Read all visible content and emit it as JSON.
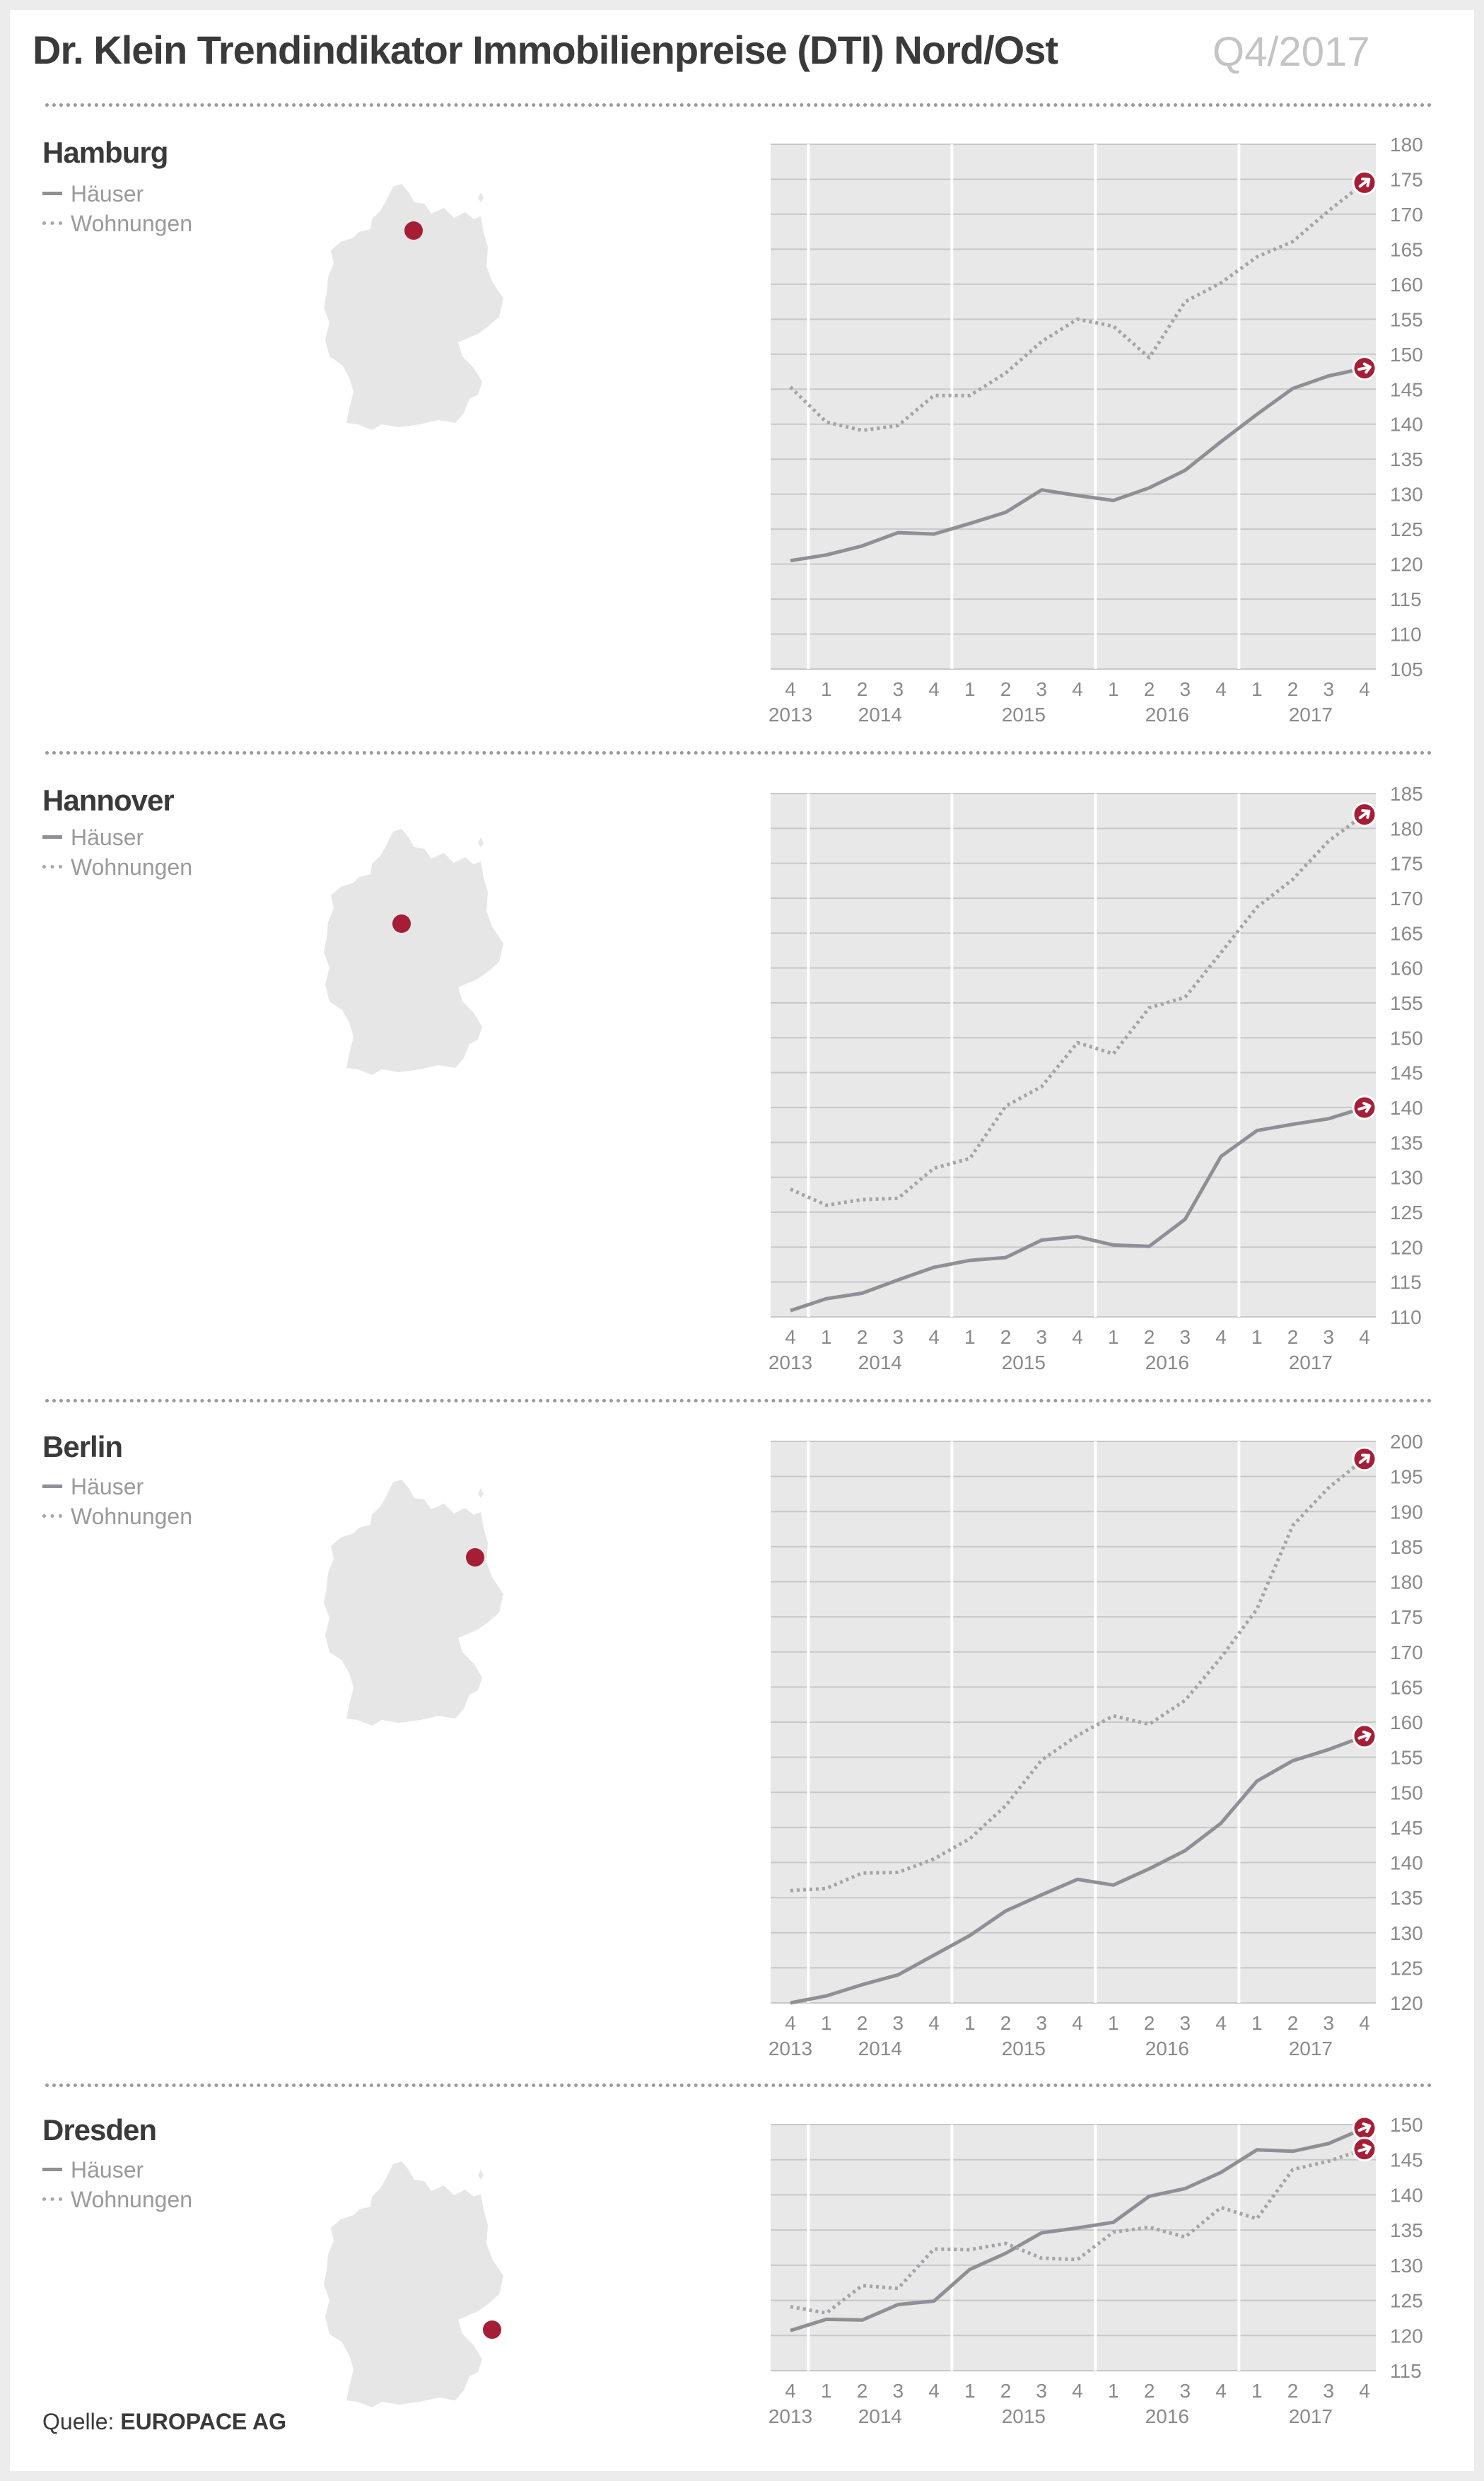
{
  "header": {
    "title": "Dr. Klein Trendindikator Immobilienpreise (DTI) Nord/Ost",
    "period": "Q4/2017"
  },
  "legend": {
    "houses": "Häuser",
    "apartments": "Wohnungen"
  },
  "source": {
    "label": "Quelle:",
    "name": "EUROPACE AG"
  },
  "colors": {
    "houses": "#8f9096",
    "apartments": "#a4a5ab",
    "accent": "#a51e36",
    "plot_bg": "#e8e8e8",
    "map": "#e6e6e6"
  },
  "chart_data": [
    {
      "type": "line",
      "title": "Hamburg",
      "x": [
        "4",
        "1",
        "2",
        "3",
        "4",
        "1",
        "2",
        "3",
        "4",
        "1",
        "2",
        "3",
        "4",
        "1",
        "2",
        "3",
        "4"
      ],
      "x_years": [
        "2013",
        "2014",
        "2014",
        "2014",
        "2014",
        "2015",
        "2015",
        "2015",
        "2015",
        "2016",
        "2016",
        "2016",
        "2016",
        "2017",
        "2017",
        "2017",
        "2017"
      ],
      "year_labels": [
        {
          "label": "2013",
          "at": 0
        },
        {
          "label": "2014",
          "at": 2.5
        },
        {
          "label": "2015",
          "at": 6.5
        },
        {
          "label": "2016",
          "at": 10.5
        },
        {
          "label": "2017",
          "at": 14.5
        }
      ],
      "ylim": [
        105,
        180
      ],
      "yticks": [
        105,
        110,
        115,
        120,
        125,
        130,
        135,
        140,
        145,
        150,
        155,
        160,
        165,
        170,
        175,
        180
      ],
      "grid": true,
      "legend_position": "left",
      "series": [
        {
          "name": "Häuser",
          "style": "solid",
          "values": [
            120.5,
            121.3,
            122.6,
            124.5,
            124.3,
            125.8,
            127.4,
            130.6,
            129.8,
            129.1,
            130.9,
            133.4,
            137.5,
            141.4,
            145.1,
            146.9,
            148.0
          ]
        },
        {
          "name": "Wohnungen",
          "style": "dotted",
          "values": [
            145.3,
            140.3,
            139.1,
            139.8,
            144.1,
            144.1,
            147.3,
            151.8,
            155.0,
            154.0,
            149.5,
            157.5,
            160.2,
            163.9,
            166.1,
            170.5,
            174.5
          ]
        }
      ],
      "marker": {
        "location": "Hamburg"
      }
    },
    {
      "type": "line",
      "title": "Hannover",
      "x": [
        "4",
        "1",
        "2",
        "3",
        "4",
        "1",
        "2",
        "3",
        "4",
        "1",
        "2",
        "3",
        "4",
        "1",
        "2",
        "3",
        "4"
      ],
      "x_years": [
        "2013",
        "2014",
        "2014",
        "2014",
        "2014",
        "2015",
        "2015",
        "2015",
        "2015",
        "2016",
        "2016",
        "2016",
        "2016",
        "2017",
        "2017",
        "2017",
        "2017"
      ],
      "year_labels": [
        {
          "label": "2013",
          "at": 0
        },
        {
          "label": "2014",
          "at": 2.5
        },
        {
          "label": "2015",
          "at": 6.5
        },
        {
          "label": "2016",
          "at": 10.5
        },
        {
          "label": "2017",
          "at": 14.5
        }
      ],
      "ylim": [
        110,
        185
      ],
      "yticks": [
        110,
        115,
        120,
        125,
        130,
        135,
        140,
        145,
        150,
        155,
        160,
        165,
        170,
        175,
        180,
        185
      ],
      "grid": true,
      "legend_position": "left",
      "series": [
        {
          "name": "Häuser",
          "style": "solid",
          "values": [
            110.9,
            112.6,
            113.4,
            115.3,
            117.1,
            118.1,
            118.5,
            121.0,
            121.5,
            120.3,
            120.1,
            124.0,
            133.0,
            136.7,
            137.6,
            138.4,
            140.0
          ]
        },
        {
          "name": "Wohnungen",
          "style": "dotted",
          "values": [
            128.3,
            126.0,
            126.8,
            127.0,
            131.3,
            132.7,
            140.2,
            143.0,
            149.3,
            147.7,
            154.3,
            155.8,
            162.2,
            168.7,
            172.7,
            178.2,
            182.0
          ]
        }
      ],
      "marker": {
        "location": "Hannover"
      }
    },
    {
      "type": "line",
      "title": "Berlin",
      "x": [
        "4",
        "1",
        "2",
        "3",
        "4",
        "1",
        "2",
        "3",
        "4",
        "1",
        "2",
        "3",
        "4",
        "1",
        "2",
        "3",
        "4"
      ],
      "x_years": [
        "2013",
        "2014",
        "2014",
        "2014",
        "2014",
        "2015",
        "2015",
        "2015",
        "2015",
        "2016",
        "2016",
        "2016",
        "2016",
        "2017",
        "2017",
        "2017",
        "2017"
      ],
      "year_labels": [
        {
          "label": "2013",
          "at": 0
        },
        {
          "label": "2014",
          "at": 2.5
        },
        {
          "label": "2015",
          "at": 6.5
        },
        {
          "label": "2016",
          "at": 10.5
        },
        {
          "label": "2017",
          "at": 14.5
        }
      ],
      "ylim": [
        120,
        200
      ],
      "yticks": [
        120,
        125,
        130,
        135,
        140,
        145,
        150,
        155,
        160,
        165,
        170,
        175,
        180,
        185,
        190,
        195,
        200
      ],
      "grid": true,
      "legend_position": "left",
      "series": [
        {
          "name": "Häuser",
          "style": "solid",
          "values": [
            120.0,
            121.0,
            122.6,
            124.0,
            126.8,
            129.6,
            133.1,
            135.4,
            137.6,
            136.8,
            139.1,
            141.7,
            145.6,
            151.6,
            154.5,
            156.1,
            158.0
          ]
        },
        {
          "name": "Wohnungen",
          "style": "dotted",
          "values": [
            136.0,
            136.3,
            138.5,
            138.6,
            140.5,
            143.4,
            148.1,
            154.6,
            158.1,
            160.9,
            159.7,
            163.1,
            169.2,
            176.1,
            188.0,
            193.4,
            197.5
          ]
        }
      ],
      "marker": {
        "location": "Berlin"
      }
    },
    {
      "type": "line",
      "title": "Dresden",
      "x": [
        "4",
        "1",
        "2",
        "3",
        "4",
        "1",
        "2",
        "3",
        "4",
        "1",
        "2",
        "3",
        "4",
        "1",
        "2",
        "3",
        "4"
      ],
      "x_years": [
        "2013",
        "2014",
        "2014",
        "2014",
        "2014",
        "2015",
        "2015",
        "2015",
        "2015",
        "2016",
        "2016",
        "2016",
        "2016",
        "2017",
        "2017",
        "2017",
        "2017"
      ],
      "year_labels": [
        {
          "label": "2013",
          "at": 0
        },
        {
          "label": "2014",
          "at": 2.5
        },
        {
          "label": "2015",
          "at": 6.5
        },
        {
          "label": "2016",
          "at": 10.5
        },
        {
          "label": "2017",
          "at": 14.5
        }
      ],
      "ylim": [
        115,
        150
      ],
      "yticks": [
        115,
        120,
        125,
        130,
        135,
        140,
        145,
        150
      ],
      "grid": true,
      "legend_position": "left",
      "series": [
        {
          "name": "Häuser",
          "style": "solid",
          "values": [
            120.7,
            122.3,
            122.2,
            124.4,
            124.9,
            129.4,
            131.7,
            134.6,
            135.3,
            136.1,
            139.8,
            140.9,
            143.2,
            146.4,
            146.2,
            147.3,
            149.5
          ]
        },
        {
          "name": "Wohnungen",
          "style": "dotted",
          "values": [
            124.1,
            123.2,
            127.1,
            126.7,
            132.3,
            132.2,
            133.1,
            131.0,
            130.8,
            134.7,
            135.4,
            134.0,
            138.2,
            136.6,
            143.6,
            144.8,
            146.5
          ]
        }
      ],
      "marker": {
        "location": "Dresden"
      }
    }
  ]
}
